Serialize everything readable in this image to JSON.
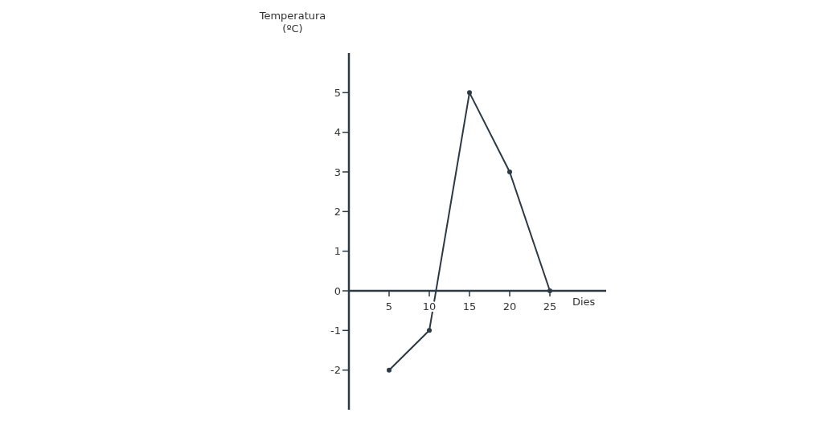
{
  "chart_data": {
    "type": "line",
    "xlabel": "Dies",
    "ylabel": "Temperatura (ºC)",
    "x": [
      5,
      10,
      15,
      20,
      25
    ],
    "series": [
      {
        "color": "#2b3a44",
        "values": [
          -2,
          -1,
          5,
          3,
          0
        ]
      }
    ],
    "xlim": [
      0,
      32
    ],
    "xticks": [
      5,
      10,
      15,
      20,
      25
    ],
    "ylim": [
      -3,
      6
    ],
    "yticks": [
      -2,
      -1,
      0,
      1,
      2,
      3,
      4,
      5
    ],
    "marker": "circle",
    "line_style": "solid",
    "grid": false,
    "legend": false
  }
}
